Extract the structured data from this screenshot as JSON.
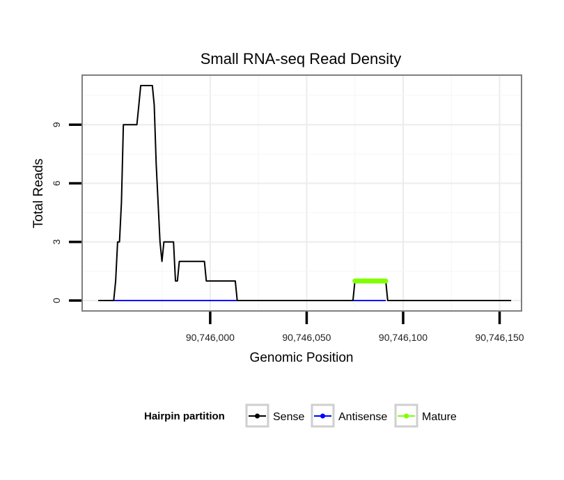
{
  "chart_data": {
    "type": "line",
    "title": "Small RNA-seq Read Density",
    "xlabel": "Genomic Position",
    "ylabel": "Total Reads",
    "xlim": [
      90745934,
      90746161
    ],
    "ylim": [
      -0.5,
      11.5
    ],
    "x_ticks": [
      {
        "value": 90746000,
        "label": "90,746,000"
      },
      {
        "value": 90746050,
        "label": "90,746,050"
      },
      {
        "value": 90746100,
        "label": "90,746,100"
      },
      {
        "value": 90746150,
        "label": "90,746,150"
      }
    ],
    "y_ticks": [
      {
        "value": 0,
        "label": "0"
      },
      {
        "value": 3,
        "label": "3"
      },
      {
        "value": 6,
        "label": "6"
      },
      {
        "value": 9,
        "label": "9"
      }
    ],
    "grid": true,
    "legend": {
      "title": "Hairpin partition",
      "placement": "bottom",
      "entries": [
        {
          "name": "Sense",
          "color": "#000000"
        },
        {
          "name": "Antisense",
          "color": "#0000ff"
        },
        {
          "name": "Mature",
          "color": "#7fff00"
        }
      ]
    },
    "series": [
      {
        "name": "Antisense",
        "color": "#0000ff",
        "x": [
          90745942,
          90746020,
          90746074,
          90746091
        ],
        "y": [
          0,
          0,
          0,
          0
        ]
      },
      {
        "name": "Sense",
        "color": "#000000",
        "x": [
          90745942,
          90745950,
          90745951,
          90745952,
          90745953,
          90745954,
          90745955,
          90745962,
          90745963,
          90745964,
          90745970,
          90745971,
          90745972,
          90745974,
          90745975,
          90745976,
          90745977,
          90745981,
          90745982,
          90745983,
          90745984,
          90745989,
          90745990,
          90745997,
          90745998,
          90746006,
          90746007,
          90746013,
          90746014,
          90746020,
          90746021,
          90746074,
          90746075,
          90746091,
          90746092,
          90746156
        ],
        "y": [
          0,
          0,
          1,
          3,
          3,
          5,
          9,
          9,
          10,
          11,
          11,
          10,
          7,
          3,
          2,
          3,
          3,
          3,
          1,
          1,
          2,
          2,
          2,
          2,
          1,
          1,
          1,
          1,
          0,
          0,
          0,
          0,
          1,
          1,
          0,
          0
        ]
      },
      {
        "name": "Mature",
        "color": "#7fff00",
        "x": [
          90746075,
          90746091
        ],
        "y": [
          1,
          1
        ]
      }
    ]
  }
}
